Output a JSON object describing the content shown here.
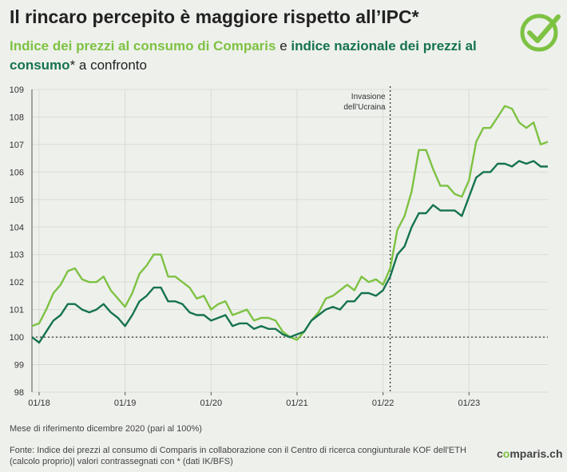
{
  "header": {
    "title": "Il rincaro percepito è maggiore rispetto all’IPC*",
    "subtitle_part1": "Indice dei prezzi al consumo di Comparis",
    "subtitle_part2": " e ",
    "subtitle_part3": "indice nazionale dei prezzi al consumo",
    "subtitle_part4": "* a confronto"
  },
  "footer": {
    "note1": "Mese di riferimento dicembre 2020 (pari al 100%)",
    "note2": "Fonte: Indice dei prezzi al consumo di Comparis in collaborazione con il Centro di ricerca congiunturale KOF dell'ETH (calcolo proprio)| valori contrassegnati con * (dati IK/BFS)",
    "brand_pre": "c",
    "brand_o": "o",
    "brand_post": "mparis.ch"
  },
  "logo": {
    "icon": "checkmark-circle-icon",
    "color": "#7dc242"
  },
  "colors": {
    "comparis": "#7dc242",
    "ipc": "#15734f",
    "grid": "#d9dbd6",
    "reference": "#333333"
  },
  "chart_data": {
    "type": "line",
    "x_start": "2017-12",
    "x_step": "month",
    "x_tick_labels": [
      "01/18",
      "01/19",
      "01/20",
      "01/21",
      "01/22",
      "01/23"
    ],
    "y_tick_labels": [
      "98",
      "99",
      "100",
      "101",
      "102",
      "103",
      "104",
      "105",
      "106",
      "107",
      "108",
      "109"
    ],
    "ylim": [
      98,
      109
    ],
    "reference_line": 100,
    "annotation": {
      "date": "2022-02",
      "label_line1": "Invasione",
      "label_line2": "dell’Ucraina"
    },
    "series": [
      {
        "key": "comparis",
        "values": [
          100.4,
          100.5,
          101.0,
          101.6,
          101.9,
          102.4,
          102.5,
          102.1,
          102.0,
          102.0,
          102.2,
          101.7,
          101.4,
          101.1,
          101.6,
          102.3,
          102.6,
          103.0,
          103.0,
          102.2,
          102.2,
          102.0,
          101.8,
          101.4,
          101.5,
          101.0,
          101.2,
          101.3,
          100.8,
          100.9,
          101.0,
          100.6,
          100.7,
          100.7,
          100.6,
          100.2,
          100.0,
          99.9,
          100.2,
          100.6,
          100.9,
          101.4,
          101.5,
          101.7,
          101.9,
          101.7,
          102.2,
          102.0,
          102.1,
          101.9,
          102.5,
          103.9,
          104.4,
          105.3,
          106.8,
          106.8,
          106.1,
          105.5,
          105.5,
          105.2,
          105.1,
          105.7,
          107.1,
          107.6,
          107.6,
          108.0,
          108.4,
          108.3,
          107.8,
          107.6,
          107.8,
          107.0,
          107.1
        ]
      },
      {
        "key": "ipc",
        "values": [
          100.0,
          99.8,
          100.2,
          100.6,
          100.8,
          101.2,
          101.2,
          101.0,
          100.9,
          101.0,
          101.2,
          100.9,
          100.7,
          100.4,
          100.8,
          101.3,
          101.5,
          101.8,
          101.8,
          101.3,
          101.3,
          101.2,
          100.9,
          100.8,
          100.8,
          100.6,
          100.7,
          100.8,
          100.4,
          100.5,
          100.5,
          100.3,
          100.4,
          100.3,
          100.3,
          100.1,
          100.0,
          100.1,
          100.2,
          100.6,
          100.8,
          101.0,
          101.1,
          101.0,
          101.3,
          101.3,
          101.6,
          101.6,
          101.5,
          101.7,
          102.2,
          103.0,
          103.3,
          104.0,
          104.5,
          104.5,
          104.8,
          104.6,
          104.6,
          104.6,
          104.4,
          105.1,
          105.8,
          106.0,
          106.0,
          106.3,
          106.3,
          106.2,
          106.4,
          106.3,
          106.4,
          106.2,
          106.2
        ]
      }
    ]
  }
}
